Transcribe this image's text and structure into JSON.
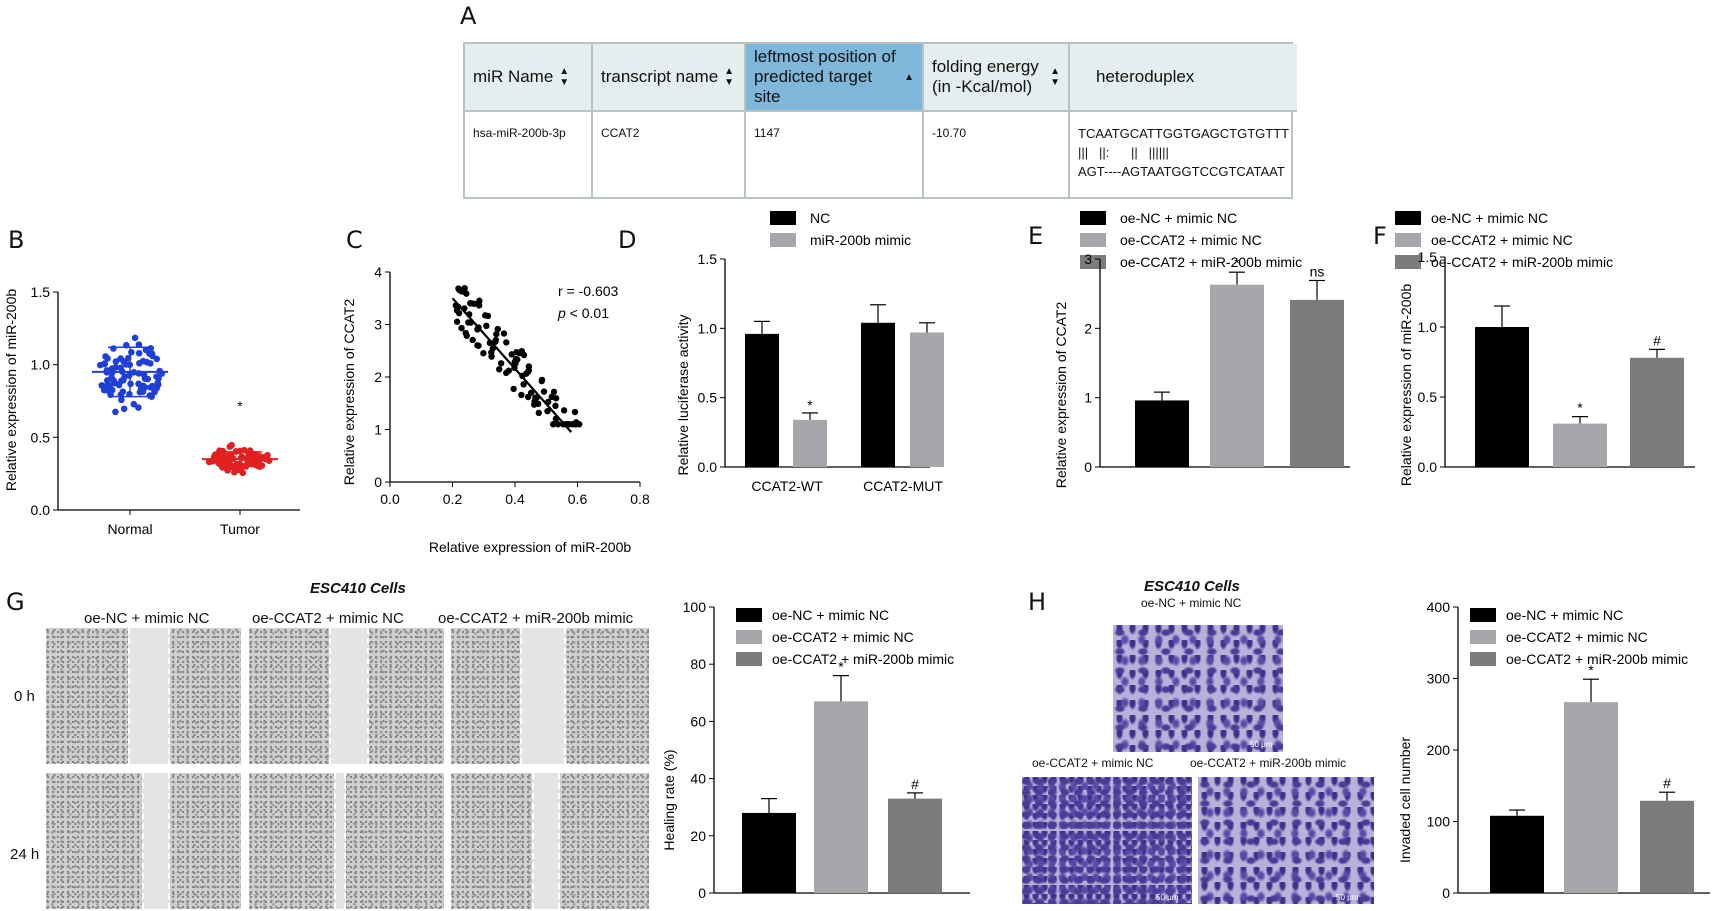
{
  "panels": {
    "A": "A",
    "B": "B",
    "C": "C",
    "D": "D",
    "E": "E",
    "F": "F",
    "G": "G",
    "H": "H"
  },
  "table": {
    "headers": [
      "miR Name",
      "transcript name",
      "leftmost position of predicted target site",
      "folding energy (in -Kcal/mol)",
      "heteroduplex"
    ],
    "row": {
      "mir": "hsa-miR-200b-3p",
      "transcript": "CCAT2",
      "position": "1147",
      "energy": "-10.70",
      "duplex": "TCAATGCATTGGTGAGCTGTGTTT\n|||   ||:      ||   ||||||\nAGT----AGTAATGGTCCGTCATAAT"
    }
  },
  "colors": {
    "blue": "#1f3fd6",
    "red": "#e32020",
    "black": "#000000",
    "lightgray": "#a6a6ab",
    "darkgray": "#7b7b7b"
  },
  "chart_data": [
    {
      "panel": "B",
      "type": "scatter",
      "ylabel": "Relative expression of miR-200b",
      "categories": [
        "Normal",
        "Tumor"
      ],
      "yticks": [
        "0.0",
        "0.5",
        "1.0",
        "1.5"
      ],
      "ylim": [
        0,
        1.5
      ],
      "series": [
        {
          "name": "Normal",
          "mean": 0.95,
          "sd_low": 0.78,
          "sd_high": 1.12,
          "color": "#1f3fd6"
        },
        {
          "name": "Tumor",
          "mean": 0.35,
          "sd_low": 0.3,
          "sd_high": 0.4,
          "color": "#e32020"
        }
      ],
      "annotation": "*"
    },
    {
      "panel": "C",
      "type": "scatter",
      "xlabel": "Relative expression of miR-200b",
      "ylabel": "Relative expression of CCAT2",
      "xlim": [
        0,
        0.8
      ],
      "ylim": [
        0,
        4
      ],
      "xticks": [
        "0.0",
        "0.2",
        "0.4",
        "0.6",
        "0.8"
      ],
      "yticks": [
        "0",
        "1",
        "2",
        "3",
        "4"
      ],
      "r_text": "r = -0.603",
      "p_label": "p",
      "p_text": " < 0.01",
      "fit": [
        [
          0.2,
          3.5
        ],
        [
          0.58,
          0.95
        ]
      ]
    },
    {
      "panel": "D",
      "type": "bar",
      "ylabel": "Relative luciferase activity",
      "categories": [
        "CCAT2-WT",
        "CCAT2-MUT"
      ],
      "legend": [
        "NC",
        "miR-200b mimic"
      ],
      "yticks": [
        "0.0",
        "0.5",
        "1.0",
        "1.5"
      ],
      "ylim": [
        0,
        1.5
      ],
      "series": [
        {
          "name": "NC",
          "values": [
            0.96,
            1.04
          ],
          "errors": [
            0.09,
            0.13
          ]
        },
        {
          "name": "miR-200b mimic",
          "values": [
            0.34,
            0.97
          ],
          "errors": [
            0.05,
            0.07
          ]
        }
      ],
      "annotations": [
        "*",
        ""
      ]
    },
    {
      "panel": "E",
      "type": "bar",
      "ylabel": "Relative expression of CCAT2",
      "legend": [
        "oe-NC + mimic NC",
        "oe-CCAT2 + mimic NC",
        "oe-CCAT2 + miR-200b mimic"
      ],
      "yticks": [
        "0",
        "1",
        "2",
        "3"
      ],
      "ylim": [
        0,
        3
      ],
      "values": [
        0.96,
        2.63,
        2.41
      ],
      "errors": [
        0.12,
        0.18,
        0.28
      ],
      "annotations": [
        "",
        "*",
        "ns"
      ]
    },
    {
      "panel": "F",
      "type": "bar",
      "ylabel": "Relative expression of miR-200b",
      "legend": [
        "oe-NC + mimic NC",
        "oe-CCAT2 + mimic NC",
        "oe-CCAT2 + miR-200b mimic"
      ],
      "yticks": [
        "0.0",
        "0.5",
        "1.0",
        "1.5"
      ],
      "ylim": [
        0,
        1.5
      ],
      "values": [
        1.0,
        0.31,
        0.78
      ],
      "errors": [
        0.15,
        0.05,
        0.06
      ],
      "annotations": [
        "",
        "*",
        "#"
      ]
    },
    {
      "panel": "G",
      "type": "bar",
      "ylabel": "Healing rate (%)",
      "legend": [
        "oe-NC + mimic NC",
        "oe-CCAT2 + mimic NC",
        "oe-CCAT2 + miR-200b mimic"
      ],
      "yticks": [
        "0",
        "20",
        "40",
        "60",
        "80",
        "100"
      ],
      "ylim": [
        0,
        100
      ],
      "values": [
        28,
        67,
        33
      ],
      "errors": [
        5,
        9,
        2
      ],
      "annotations": [
        "",
        "*",
        "#"
      ]
    },
    {
      "panel": "H",
      "type": "bar",
      "ylabel": "Invaded cell number",
      "legend": [
        "oe-NC + mimic NC",
        "oe-CCAT2 + mimic NC",
        "oe-CCAT2 + miR-200b mimic"
      ],
      "yticks": [
        "0",
        "100",
        "200",
        "300",
        "400"
      ],
      "ylim": [
        0,
        400
      ],
      "values": [
        108,
        267,
        129
      ],
      "errors": [
        8,
        32,
        12
      ],
      "annotations": [
        "",
        "*",
        "#"
      ]
    }
  ],
  "G_images": {
    "title": "ESC410 Cells",
    "columns": [
      "oe-NC + mimic NC",
      "oe-CCAT2 + mimic NC",
      "oe-CCAT2 + miR-200b mimic"
    ],
    "rows": [
      "0 h",
      "24 h"
    ]
  },
  "H_images": {
    "title": "ESC410 Cells",
    "top": "oe-NC + mimic NC",
    "bottom_left": "oe-CCAT2 + mimic NC",
    "bottom_right": "oe-CCAT2 + miR-200b mimic",
    "scale": "50 μm"
  }
}
